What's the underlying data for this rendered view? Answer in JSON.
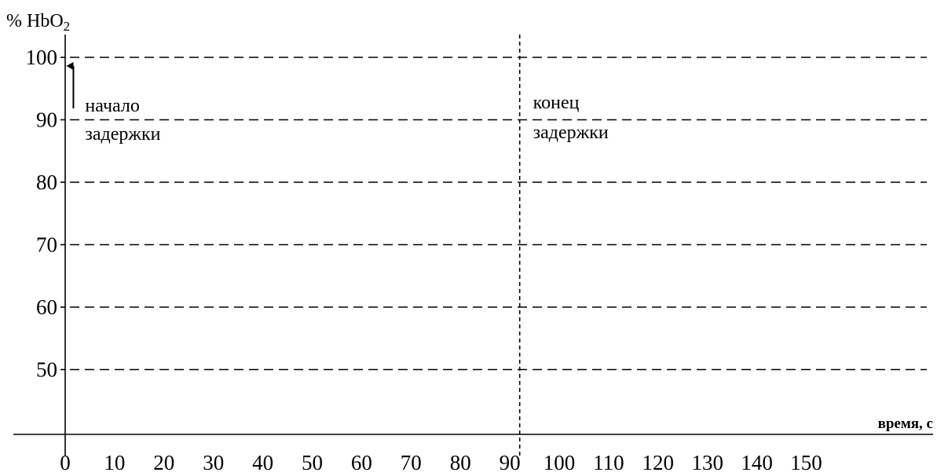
{
  "chart_data": {
    "type": "line",
    "ylabel": "% HbO",
    "ylabel_subscript": "2",
    "xlabel": "время, с",
    "y_ticks": [
      100,
      90,
      80,
      70,
      60,
      50
    ],
    "x_ticks": [
      0,
      10,
      20,
      30,
      40,
      50,
      60,
      70,
      80,
      90,
      100,
      110,
      120,
      130,
      140,
      150
    ],
    "xlim": [
      0,
      150
    ],
    "ylim": [
      40,
      100
    ],
    "grid": "horizontal dashed at y ticks",
    "series": [],
    "markers": [
      {
        "x": 1.5,
        "label": [
          "начало",
          "задержки"
        ],
        "style": "arrow"
      },
      {
        "x": 92,
        "label": [
          "конец",
          "задержки"
        ],
        "style": "vertical dashed line"
      }
    ]
  }
}
